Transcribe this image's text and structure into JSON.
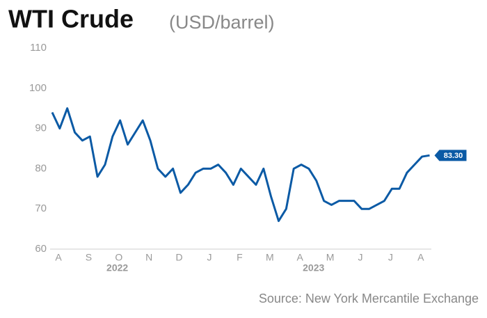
{
  "chart_data": {
    "type": "line",
    "title": "WTI Crude",
    "subtitle": "(USD/barrel)",
    "source": "Source: New York Mercantile Exchange",
    "x": [
      "2022-08",
      "2022-08",
      "2022-08",
      "2022-08",
      "2022-09",
      "2022-09",
      "2022-09",
      "2022-09",
      "2022-10",
      "2022-10",
      "2022-10",
      "2022-10",
      "2022-11",
      "2022-11",
      "2022-11",
      "2022-11",
      "2022-12",
      "2022-12",
      "2022-12",
      "2022-12",
      "2023-01",
      "2023-01",
      "2023-01",
      "2023-01",
      "2023-02",
      "2023-02",
      "2023-02",
      "2023-02",
      "2023-03",
      "2023-03",
      "2023-03",
      "2023-03",
      "2023-04",
      "2023-04",
      "2023-04",
      "2023-04",
      "2023-05",
      "2023-05",
      "2023-05",
      "2023-05",
      "2023-06",
      "2023-06",
      "2023-06",
      "2023-06",
      "2023-07",
      "2023-07",
      "2023-07",
      "2023-07",
      "2023-08",
      "2023-08",
      "2023-08"
    ],
    "series": [
      {
        "name": "WTI Crude",
        "color": "#0b5aa5",
        "values": [
          94,
          90,
          95,
          89,
          87,
          88,
          78,
          81,
          88,
          92,
          86,
          89,
          92,
          87,
          80,
          78,
          80,
          74,
          76,
          79,
          80,
          80,
          81,
          79,
          76,
          80,
          78,
          76,
          80,
          73,
          67,
          70,
          80,
          81,
          80,
          77,
          72,
          71,
          72,
          72,
          72,
          70,
          70,
          71,
          72,
          75,
          75,
          79,
          81,
          83,
          83.3
        ],
        "value_labels": {
          "50": "83.30"
        }
      }
    ],
    "xticks": [
      {
        "value": "2022-08",
        "label": "A"
      },
      {
        "value": "2022-09",
        "label": "S"
      },
      {
        "value": "2022-10",
        "label": "O"
      },
      {
        "value": "2022-11",
        "label": "N"
      },
      {
        "value": "2022-12",
        "label": "D"
      },
      {
        "value": "2023-01",
        "label": "J"
      },
      {
        "value": "2023-02",
        "label": "F"
      },
      {
        "value": "2023-03",
        "label": "M"
      },
      {
        "value": "2023-04",
        "label": "A"
      },
      {
        "value": "2023-05",
        "label": "M"
      },
      {
        "value": "2023-06",
        "label": "J"
      },
      {
        "value": "2023-07",
        "label": "J"
      },
      {
        "value": "2023-08",
        "label": "A"
      }
    ],
    "years": [
      {
        "value": "2022-10",
        "label": "2022"
      },
      {
        "value": "2023-04",
        "label": "2023"
      }
    ],
    "ylim": [
      60,
      110
    ],
    "yticks": [
      60,
      70,
      80,
      90,
      100,
      110
    ]
  }
}
